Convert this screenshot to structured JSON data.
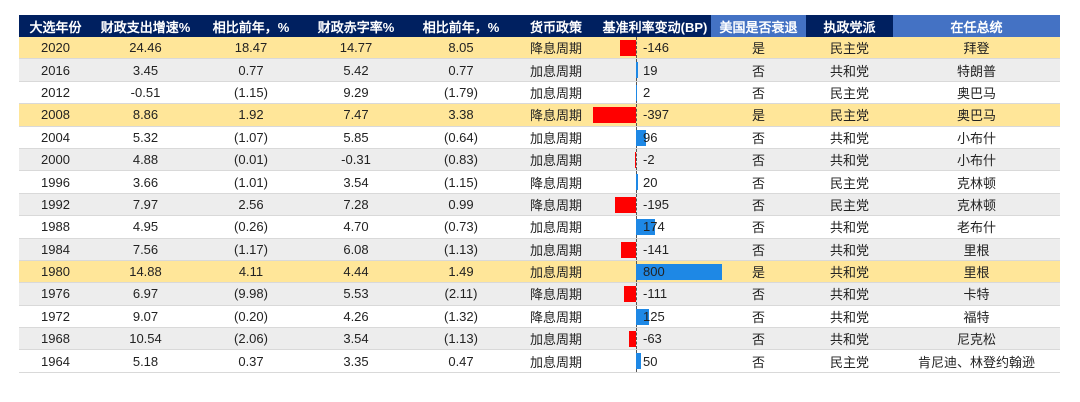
{
  "headers": [
    "大选年份",
    "财政支出增速%",
    "相比前年，%",
    "财政赤字率%",
    "相比前年，%",
    "货币政策",
    "基准利率变动(BP)",
    "美国是否衰退",
    "执政党派",
    "在任总统"
  ],
  "rows": [
    {
      "year": "2020",
      "spend": "24.46",
      "spend_chg": "18.47",
      "spend_chg_neg": false,
      "deficit": "14.77",
      "deficit_chg": "8.05",
      "deficit_chg_neg": false,
      "policy": "降息周期",
      "bp": -146,
      "bp_label": "-146",
      "recession": "是",
      "party": "民主党",
      "president": "拜登",
      "highlight": true
    },
    {
      "year": "2016",
      "spend": "3.45",
      "spend_chg": "0.77",
      "spend_chg_neg": false,
      "deficit": "5.42",
      "deficit_chg": "0.77",
      "deficit_chg_neg": false,
      "policy": "加息周期",
      "bp": 19,
      "bp_label": "19",
      "recession": "否",
      "party": "共和党",
      "president": "特朗普",
      "highlight": false
    },
    {
      "year": "2012",
      "spend": "-0.51",
      "spend_chg": "(1.15)",
      "spend_chg_neg": true,
      "deficit": "9.29",
      "deficit_chg": "(1.79)",
      "deficit_chg_neg": true,
      "policy": "加息周期",
      "bp": 2,
      "bp_label": "2",
      "recession": "否",
      "party": "民主党",
      "president": "奥巴马",
      "highlight": false
    },
    {
      "year": "2008",
      "spend": "8.86",
      "spend_chg": "1.92",
      "spend_chg_neg": false,
      "deficit": "7.47",
      "deficit_chg": "3.38",
      "deficit_chg_neg": false,
      "policy": "降息周期",
      "bp": -397,
      "bp_label": "-397",
      "recession": "是",
      "party": "民主党",
      "president": "奥巴马",
      "highlight": true
    },
    {
      "year": "2004",
      "spend": "5.32",
      "spend_chg": "(1.07)",
      "spend_chg_neg": true,
      "deficit": "5.85",
      "deficit_chg": "(0.64)",
      "deficit_chg_neg": true,
      "policy": "加息周期",
      "bp": 96,
      "bp_label": "96",
      "recession": "否",
      "party": "共和党",
      "president": "小布什",
      "highlight": false
    },
    {
      "year": "2000",
      "spend": "4.88",
      "spend_chg": "(0.01)",
      "spend_chg_neg": true,
      "deficit": "-0.31",
      "deficit_chg": "(0.83)",
      "deficit_chg_neg": true,
      "policy": "加息周期",
      "bp": -2,
      "bp_label": "-2",
      "recession": "否",
      "party": "共和党",
      "president": "小布什",
      "highlight": false
    },
    {
      "year": "1996",
      "spend": "3.66",
      "spend_chg": "(1.01)",
      "spend_chg_neg": true,
      "deficit": "3.54",
      "deficit_chg": "(1.15)",
      "deficit_chg_neg": true,
      "policy": "降息周期",
      "bp": 20,
      "bp_label": "20",
      "recession": "否",
      "party": "民主党",
      "president": "克林顿",
      "highlight": false
    },
    {
      "year": "1992",
      "spend": "7.97",
      "spend_chg": "2.56",
      "spend_chg_neg": false,
      "deficit": "7.28",
      "deficit_chg": "0.99",
      "deficit_chg_neg": false,
      "policy": "降息周期",
      "bp": -195,
      "bp_label": "-195",
      "recession": "否",
      "party": "民主党",
      "president": "克林顿",
      "highlight": false
    },
    {
      "year": "1988",
      "spend": "4.95",
      "spend_chg": "(0.26)",
      "spend_chg_neg": true,
      "deficit": "4.70",
      "deficit_chg": "(0.73)",
      "deficit_chg_neg": true,
      "policy": "加息周期",
      "bp": 174,
      "bp_label": "174",
      "recession": "否",
      "party": "共和党",
      "president": "老布什",
      "highlight": false
    },
    {
      "year": "1984",
      "spend": "7.56",
      "spend_chg": "(1.17)",
      "spend_chg_neg": true,
      "deficit": "6.08",
      "deficit_chg": "(1.13)",
      "deficit_chg_neg": true,
      "policy": "加息周期",
      "bp": -141,
      "bp_label": "-141",
      "recession": "否",
      "party": "共和党",
      "president": "里根",
      "highlight": false
    },
    {
      "year": "1980",
      "spend": "14.88",
      "spend_chg": "4.11",
      "spend_chg_neg": false,
      "deficit": "4.44",
      "deficit_chg": "1.49",
      "deficit_chg_neg": false,
      "policy": "加息周期",
      "bp": 800,
      "bp_label": "800",
      "recession": "是",
      "party": "共和党",
      "president": "里根",
      "highlight": true
    },
    {
      "year": "1976",
      "spend": "6.97",
      "spend_chg": "(9.98)",
      "spend_chg_neg": true,
      "deficit": "5.53",
      "deficit_chg": "(2.11)",
      "deficit_chg_neg": true,
      "policy": "降息周期",
      "bp": -111,
      "bp_label": "-111",
      "recession": "否",
      "party": "共和党",
      "president": "卡特",
      "highlight": false
    },
    {
      "year": "1972",
      "spend": "9.07",
      "spend_chg": "(0.20)",
      "spend_chg_neg": true,
      "deficit": "4.26",
      "deficit_chg": "(1.32)",
      "deficit_chg_neg": true,
      "policy": "降息周期",
      "bp": 125,
      "bp_label": "125",
      "recession": "否",
      "party": "共和党",
      "president": "福特",
      "highlight": false
    },
    {
      "year": "1968",
      "spend": "10.54",
      "spend_chg": "(2.06)",
      "spend_chg_neg": true,
      "deficit": "3.54",
      "deficit_chg": "(1.13)",
      "deficit_chg_neg": true,
      "policy": "加息周期",
      "bp": -63,
      "bp_label": "-63",
      "recession": "否",
      "party": "共和党",
      "president": "尼克松",
      "highlight": false
    },
    {
      "year": "1964",
      "spend": "5.18",
      "spend_chg": "0.37",
      "spend_chg_neg": false,
      "deficit": "3.35",
      "deficit_chg": "0.47",
      "deficit_chg_neg": false,
      "policy": "加息周期",
      "bp": 50,
      "bp_label": "50",
      "recession": "否",
      "party": "民主党",
      "president": "肯尼迪、林登约翰逊",
      "highlight": false
    }
  ],
  "colors": {
    "header_dark": "#002060",
    "header_light": "#4472c4",
    "highlight_row": "#ffe699",
    "stripe_row": "#ededed",
    "negative_text": "#ff0000",
    "bar_positive": "#1e88e5",
    "bar_negative": "#ff0000"
  },
  "bp_scale_max": 800
}
